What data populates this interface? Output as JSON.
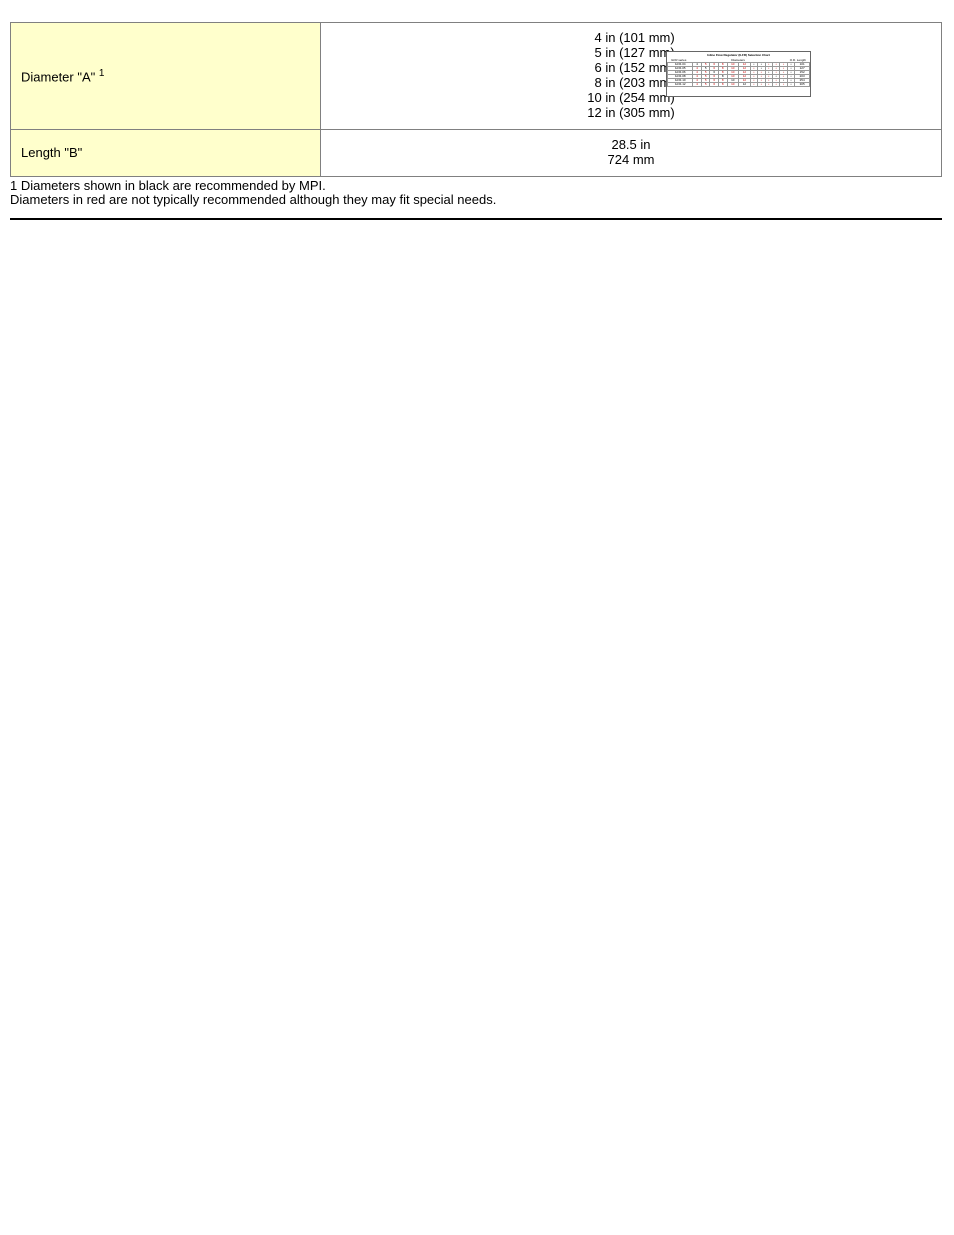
{
  "table": {
    "rows": [
      {
        "label": "Diameter \"A\"",
        "superscript": "1",
        "values": [
          "4 in (101 mm)",
          "5 in (127 mm)",
          "6 in (152 mm)",
          "8 in (203 mm)",
          "10 in (254 mm)",
          "12 in (305 mm)"
        ]
      },
      {
        "label": "Length \"B\"",
        "superscript": "",
        "values": [
          "28.5 in",
          "724 mm"
        ]
      }
    ]
  },
  "footnotes": [
    "1 Diameters shown in black are recommended by MPI.",
    "Diameters in red are not typically recommended although they may fit special needs."
  ],
  "mini_chart": {
    "title": "Inline Flow Regulator (ILFR) Selection Chart",
    "left_header": "ILFR series",
    "center_header": "Diameters",
    "right_header_top": "O.D. Length",
    "right_header_bottom": "mm",
    "row_labels": [
      "ILFR-04",
      "ILFR-05",
      "ILFR-06",
      "ILFR-08",
      "ILFR-10",
      "ILFR-12"
    ],
    "cols": 14,
    "colors": {
      "red": "#cc0000",
      "black": "#000000",
      "border": "#999999",
      "bg": "#ffffff"
    }
  },
  "styling": {
    "label_bg": "#ffffcc",
    "value_bg": "#ffffff",
    "table_border": "#808080",
    "footnote_color": "#000000",
    "divider_color": "#000000",
    "font_family": "Arial",
    "base_font_size": 13
  }
}
